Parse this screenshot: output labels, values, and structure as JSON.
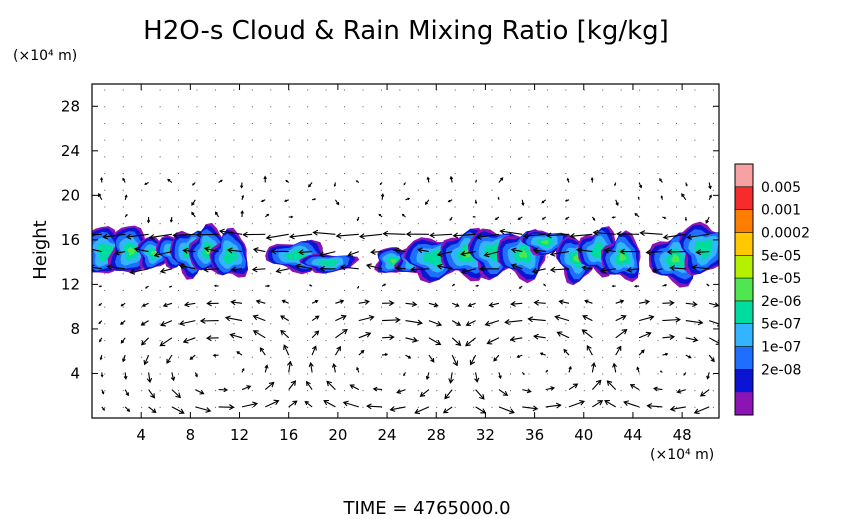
{
  "chart_data": {
    "type": "heatmap",
    "title": "H2O-s Cloud & Rain Mixing Ratio [kg/kg]",
    "ylabel": "Height",
    "y_unit": "(×10⁴ m)",
    "x_unit": "(×10⁴ m)",
    "xlim": [
      0,
      51
    ],
    "ylim": [
      0,
      30
    ],
    "x_ticks": [
      "4",
      "8",
      "12",
      "16",
      "20",
      "24",
      "28",
      "32",
      "36",
      "40",
      "44",
      "48"
    ],
    "y_ticks": [
      "4",
      "8",
      "12",
      "16",
      "20",
      "24",
      "28"
    ],
    "colorbar_labels": [
      "0.005",
      "0.001",
      "0.0002",
      "5e-05",
      "1e-05",
      "2e-06",
      "5e-07",
      "1e-07",
      "2e-08"
    ],
    "colorbar_colors": [
      "#f7a2a2",
      "#f62b2b",
      "#ff7d00",
      "#ffc800",
      "#b4f000",
      "#50e650",
      "#00dca0",
      "#32b4ff",
      "#1e6eff",
      "#0a14d2",
      "#8c14b4"
    ],
    "cloud_layer_height": [
      13,
      16.5
    ],
    "cloud_blobs": [
      {
        "x": [
          0,
          4.3
        ],
        "y": [
          12.8,
          17.2
        ]
      },
      {
        "x": [
          4.2,
          7.4
        ],
        "y": [
          13.3,
          16.2
        ]
      },
      {
        "x": [
          7.0,
          12.3
        ],
        "y": [
          12.4,
          16.7
        ]
      },
      {
        "x": [
          15.2,
          18.2
        ],
        "y": [
          13.2,
          16.0
        ]
      },
      {
        "x": [
          18.0,
          20.8
        ],
        "y": [
          13.3,
          15.0
        ]
      },
      {
        "x": [
          23.6,
          27.2
        ],
        "y": [
          12.8,
          15.2
        ]
      },
      {
        "x": [
          26.5,
          29.5
        ],
        "y": [
          12.8,
          16.7
        ]
      },
      {
        "x": [
          29.2,
          36.5
        ],
        "y": [
          12.4,
          16.8
        ]
      },
      {
        "x": [
          35.5,
          37.8
        ],
        "y": [
          14.6,
          16.8
        ]
      },
      {
        "x": [
          38.5,
          44.2
        ],
        "y": [
          12.6,
          16.8
        ]
      },
      {
        "x": [
          46.0,
          51.0
        ],
        "y": [
          12.4,
          17.0
        ]
      }
    ],
    "time_label": "TIME = 4765000.0"
  }
}
